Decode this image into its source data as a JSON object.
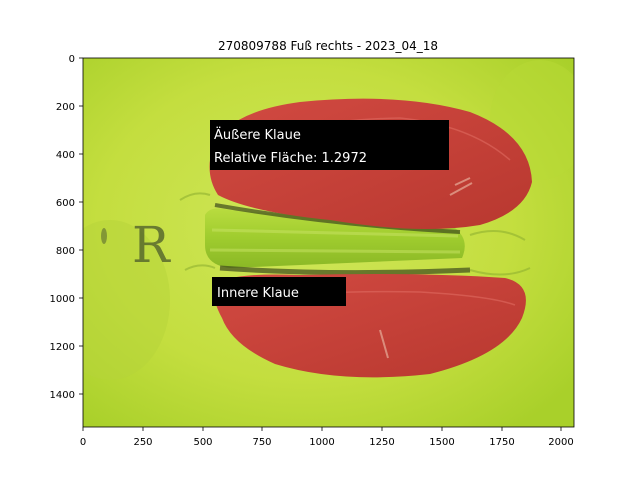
{
  "title": "270809788 Fuß rechts - 2023_04_18",
  "axes": {
    "x_ticks": [
      "0",
      "250",
      "500",
      "750",
      "1000",
      "1250",
      "1500",
      "1750",
      "2000"
    ],
    "y_ticks": [
      "0",
      "200",
      "400",
      "600",
      "800",
      "1000",
      "1200",
      "1400"
    ]
  },
  "annotations": {
    "outer_claw_line1": "Äußere Klaue",
    "outer_claw_line2": "Relative Fläche: 1.2972",
    "inner_claw": "Innere Klaue"
  },
  "colors": {
    "background": "#c2df3c",
    "claw_overlay": "#c8453f",
    "label_bg": "#000000"
  }
}
